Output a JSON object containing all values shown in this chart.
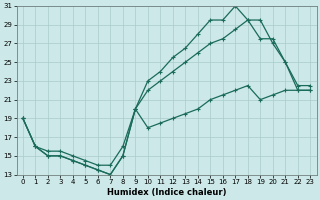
{
  "xlabel": "Humidex (Indice chaleur)",
  "bg_color": "#cce8e8",
  "grid_color": "#aacccc",
  "line_color": "#1a6b5a",
  "xlim": [
    -0.5,
    23.5
  ],
  "ylim": [
    13,
    31
  ],
  "xtick_labels": [
    "0",
    "1",
    "2",
    "3",
    "4",
    "5",
    "6",
    "7",
    "8",
    "9",
    "10",
    "11",
    "12",
    "13",
    "14",
    "15",
    "16",
    "17",
    "18",
    "19",
    "20",
    "21",
    "22",
    "23"
  ],
  "ytick_labels": [
    "13",
    "15",
    "17",
    "19",
    "21",
    "23",
    "25",
    "27",
    "29",
    "31"
  ],
  "ytick_vals": [
    13,
    15,
    17,
    19,
    21,
    23,
    25,
    27,
    29,
    31
  ],
  "curve_top_x": [
    0,
    1,
    2,
    3,
    4,
    5,
    6,
    7,
    8,
    9,
    10,
    11,
    12,
    13,
    14,
    15,
    16,
    17,
    18,
    19,
    20,
    21,
    22,
    23
  ],
  "curve_top_y": [
    19,
    16,
    15,
    15,
    14.5,
    14,
    13.5,
    13,
    15,
    20,
    23,
    24,
    25.5,
    26.5,
    28,
    29.5,
    29.5,
    31,
    29.5,
    29.5,
    27,
    25,
    22,
    22
  ],
  "curve_mid_x": [
    0,
    1,
    2,
    3,
    4,
    5,
    6,
    7,
    8,
    9,
    10,
    11,
    12,
    13,
    14,
    15,
    16,
    17,
    18,
    19,
    20,
    21,
    22,
    23
  ],
  "curve_mid_y": [
    19,
    16,
    15.5,
    15.5,
    15,
    14.5,
    14,
    14,
    16,
    20,
    22,
    23,
    24,
    25,
    26,
    27,
    27.5,
    28.5,
    29.5,
    27.5,
    27.5,
    25,
    22.5,
    22.5
  ],
  "curve_bot_x": [
    0,
    1,
    2,
    3,
    4,
    5,
    6,
    7,
    8,
    9,
    10,
    11,
    12,
    13,
    14,
    15,
    16,
    17,
    18,
    19,
    20,
    21,
    22,
    23
  ],
  "curve_bot_y": [
    19,
    16,
    15,
    15,
    14.5,
    14,
    13.5,
    13,
    15,
    20,
    18,
    18.5,
    19,
    19.5,
    20,
    21,
    21.5,
    22,
    22.5,
    21,
    21.5,
    22,
    22,
    22
  ]
}
